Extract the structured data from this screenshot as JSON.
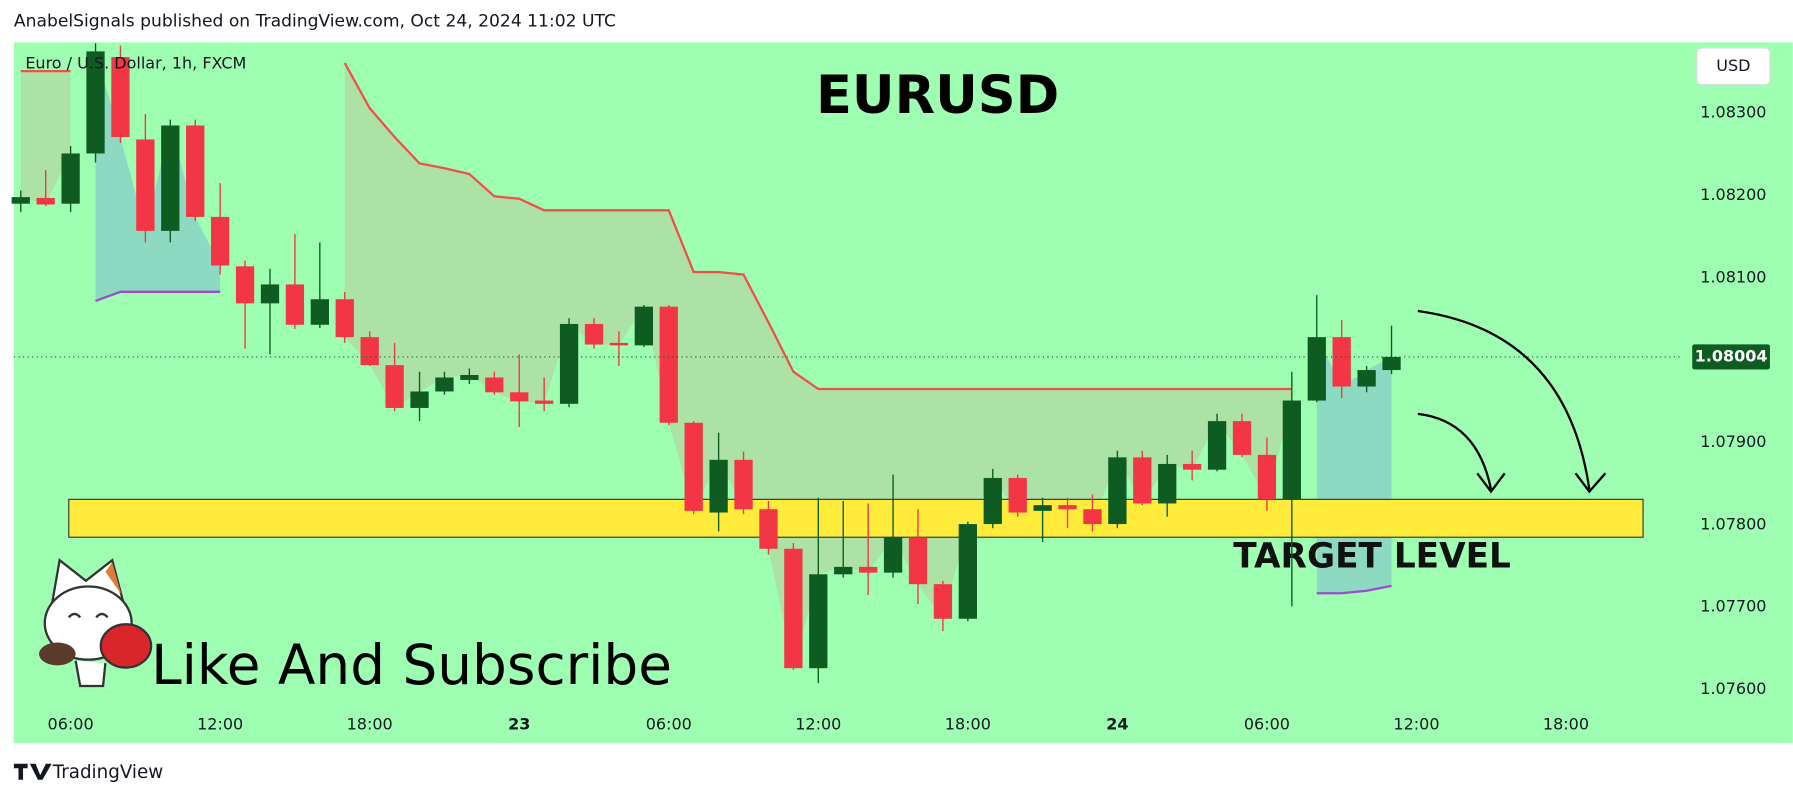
{
  "header": {
    "text": "AnabelSignals published on TradingView.com, Oct 24, 2024 11:02 UTC"
  },
  "footer": {
    "brand": "TradingView"
  },
  "chart_data": {
    "type": "candlestick",
    "title": "EURUSD",
    "symbol": "Euro / U.S. Dollar, 1h, FXCM",
    "currency": "USD",
    "annotation": "Like And Subscribe",
    "categories": [
      null,
      null,
      "06:00",
      null,
      null,
      null,
      null,
      null,
      "12:00",
      null,
      null,
      null,
      null,
      null,
      "18:00",
      null,
      null,
      null,
      null,
      null,
      "23",
      null,
      null,
      null,
      null,
      null,
      "06:00",
      null,
      null,
      null,
      null,
      null,
      "12:00",
      null,
      null,
      null,
      null,
      null,
      "18:00",
      null,
      null,
      null,
      null,
      null,
      "24",
      null,
      null,
      null,
      null,
      null,
      "06:00",
      null,
      null,
      null,
      null,
      null,
      "12:00",
      null,
      null,
      null,
      null,
      null,
      "18:00",
      null,
      null,
      null,
      null
    ],
    "open": [
      1.0819,
      1.08197,
      1.0819,
      1.08251,
      1.08368,
      1.08268,
      1.08157,
      1.08285,
      1.08174,
      1.08114,
      1.08069,
      1.08092,
      1.08043,
      1.08074,
      1.08028,
      1.07994,
      1.07942,
      1.07962,
      1.07976,
      1.07979,
      1.07961,
      1.07951,
      1.07947,
      1.08044,
      1.08021,
      1.08018,
      1.08065,
      1.07924,
      1.07815,
      1.07879,
      1.07819,
      1.07771,
      1.07626,
      1.0774,
      1.07749,
      1.07742,
      1.07785,
      1.07728,
      1.07686,
      1.07801,
      1.07857,
      1.07817,
      1.07824,
      1.07819,
      1.07801,
      1.07882,
      1.07826,
      1.07874,
      1.07867,
      1.07926,
      1.07885,
      1.07831,
      1.07951,
      1.08028,
      1.07968,
      1.07988,
      null,
      null,
      null,
      null,
      null,
      null,
      null,
      null,
      null,
      null,
      null
    ],
    "high": [
      1.08206,
      1.08231,
      1.0826,
      1.08385,
      1.08382,
      1.08299,
      1.08292,
      1.08292,
      1.08215,
      1.08121,
      1.08111,
      1.08153,
      1.08143,
      1.08083,
      1.08035,
      1.08021,
      1.07986,
      1.07986,
      1.0799,
      1.07986,
      1.08007,
      1.07979,
      1.08051,
      1.08051,
      1.08035,
      1.08067,
      1.08067,
      1.07926,
      1.07912,
      1.07889,
      1.07829,
      1.07778,
      1.07833,
      1.07829,
      1.07826,
      1.07861,
      1.07819,
      1.07732,
      1.07804,
      1.07868,
      1.07861,
      1.07833,
      1.07833,
      1.07837,
      1.0789,
      1.0789,
      1.07885,
      1.0789,
      1.07935,
      1.07935,
      1.07906,
      1.07986,
      1.08079,
      1.08049,
      1.07993,
      1.08042,
      null,
      null,
      null,
      null,
      null,
      null,
      null,
      null,
      null,
      null,
      null
    ],
    "low": [
      1.0818,
      1.08187,
      1.0818,
      1.0824,
      1.08264,
      1.08143,
      1.08143,
      1.08169,
      1.08104,
      1.08014,
      1.08007,
      1.08038,
      1.08039,
      1.08021,
      1.07993,
      1.07938,
      1.07926,
      1.07958,
      1.07971,
      1.07958,
      1.07919,
      1.07938,
      1.07943,
      1.08014,
      1.07993,
      1.08016,
      1.07921,
      1.07813,
      1.07792,
      1.07813,
      1.07764,
      1.07624,
      1.07608,
      1.07736,
      1.07715,
      1.07736,
      1.07704,
      1.07671,
      1.07683,
      1.07796,
      1.0781,
      1.07779,
      1.07796,
      1.07792,
      1.07796,
      1.07824,
      1.0781,
      1.07854,
      1.07865,
      1.07882,
      1.07817,
      1.07701,
      1.07949,
      1.07954,
      1.07961,
      1.07983,
      null,
      null,
      null,
      null,
      null,
      null,
      null,
      null,
      null,
      null,
      null
    ],
    "close": [
      1.08198,
      1.08189,
      1.08251,
      1.08375,
      1.08271,
      1.08157,
      1.08285,
      1.08174,
      1.08115,
      1.08069,
      1.08092,
      1.08043,
      1.08074,
      1.08028,
      1.07994,
      1.07942,
      1.07962,
      1.07979,
      1.07982,
      1.07961,
      1.0795,
      1.07947,
      1.08044,
      1.08019,
      1.08018,
      1.08065,
      1.07924,
      1.07817,
      1.07879,
      1.07819,
      1.07771,
      1.07626,
      1.0774,
      1.07749,
      1.07742,
      1.07785,
      1.07728,
      1.07686,
      1.07801,
      1.07857,
      1.07815,
      1.07824,
      1.07819,
      1.07801,
      1.07882,
      1.07826,
      1.07874,
      1.07867,
      1.07926,
      1.07885,
      1.07831,
      1.07951,
      1.08028,
      1.07968,
      1.07988,
      1.08004,
      null,
      null,
      null,
      null,
      null,
      null,
      null,
      null,
      null,
      null,
      null
    ],
    "up_color": "#0f5c22",
    "down_color": "#f23645",
    "overlays": [
      {
        "color": "#f0504a",
        "values": [
          1.08351,
          1.08351,
          1.08351,
          null,
          null,
          null,
          null,
          null,
          null,
          null,
          null,
          null,
          null,
          1.08361,
          1.08306,
          1.08271,
          1.08239,
          1.08233,
          1.08226,
          1.08199,
          1.08196,
          1.08182,
          1.08182,
          1.08182,
          1.08182,
          1.08182,
          1.08182,
          1.08107,
          1.08107,
          1.08104,
          1.08046,
          1.07986,
          1.07965,
          1.07965,
          1.07965,
          1.07965,
          1.07965,
          1.07965,
          1.07965,
          1.07965,
          1.07965,
          1.07965,
          1.07965,
          1.07965,
          1.07965,
          1.07965,
          1.07965,
          1.07965,
          1.07965,
          1.07965,
          1.07965,
          1.07965,
          null,
          null,
          null,
          null,
          null,
          null,
          null,
          null,
          null,
          null,
          null,
          null,
          null,
          null,
          null
        ]
      },
      {
        "color": "#9c4dcc",
        "values": [
          null,
          null,
          null,
          1.08072,
          1.08083,
          1.08083,
          1.08083,
          1.08083,
          1.08083,
          null,
          null,
          null,
          null,
          null,
          null,
          null,
          null,
          null,
          null,
          null,
          null,
          null,
          null,
          null,
          null,
          null,
          null,
          null,
          null,
          null,
          null,
          null,
          null,
          null,
          null,
          null,
          null,
          null,
          null,
          null,
          null,
          null,
          null,
          null,
          null,
          null,
          null,
          null,
          null,
          null,
          null,
          null,
          1.07717,
          1.07717,
          1.0772,
          1.07726,
          null,
          null,
          null,
          null,
          null,
          null,
          null,
          null,
          null,
          null,
          null
        ]
      }
    ],
    "zone": {
      "low": 1.07785,
      "high": 1.07831,
      "label": "TARGET LEVEL",
      "color": "#ffeb3b"
    },
    "ylim": [
      1.07535,
      1.08386
    ],
    "yticks": [
      {
        "value": 1.076,
        "label": "1.07600"
      },
      {
        "value": 1.077,
        "label": "1.07700"
      },
      {
        "value": 1.078,
        "label": "1.07800"
      },
      {
        "value": 1.079,
        "label": "1.07900"
      },
      {
        "value": 1.081,
        "label": "1.08100"
      },
      {
        "value": 1.082,
        "label": "1.08200"
      },
      {
        "value": 1.083,
        "label": "1.08300"
      }
    ],
    "grid": false,
    "background": "#9effb3"
  }
}
